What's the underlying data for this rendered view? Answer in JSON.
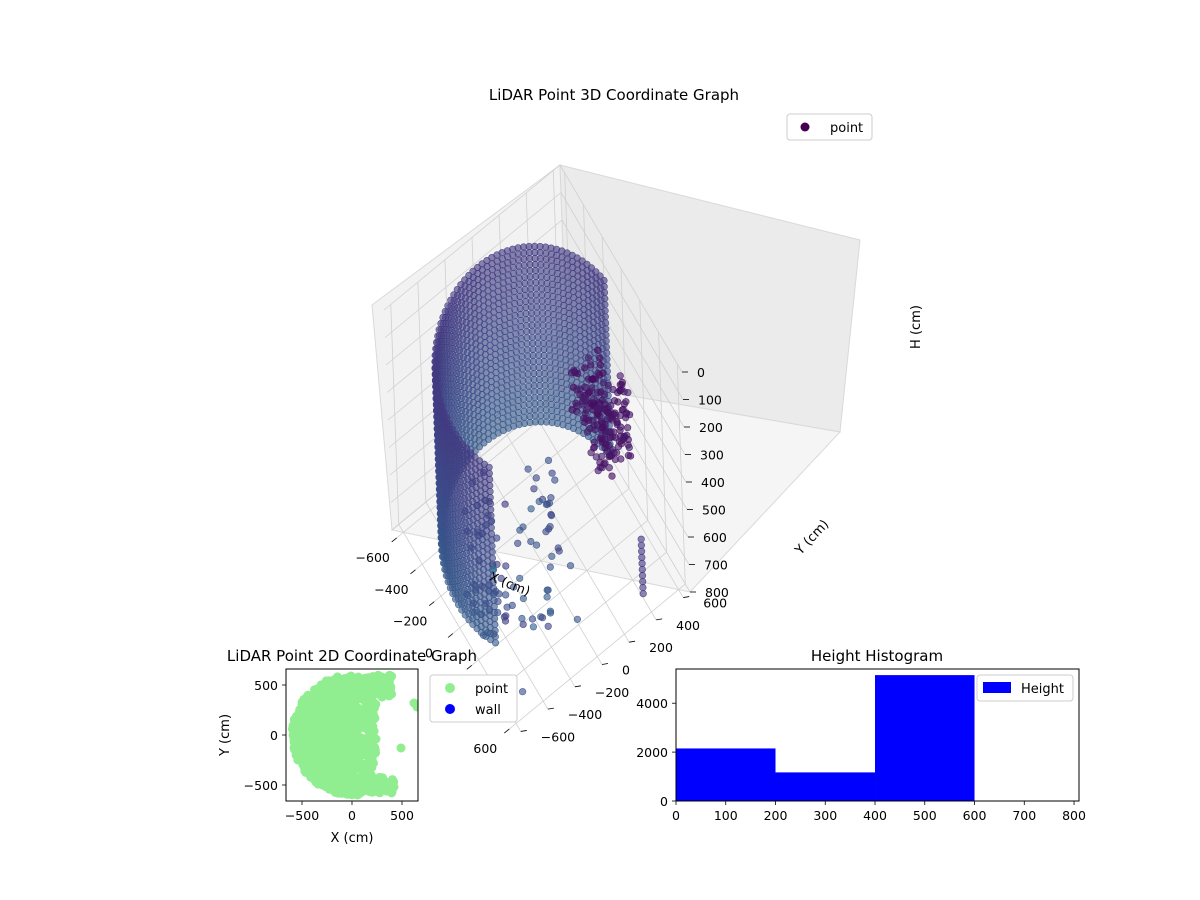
{
  "chart_data": [
    {
      "type": "scatter",
      "projection": "3d",
      "title": "LiDAR Point 3D Coordinate Graph",
      "xlabel": "X (cm)",
      "ylabel": "Y (cm)",
      "zlabel": "H (cm)",
      "xticks": [
        "−600",
        "−400",
        "−200",
        "0",
        "200",
        "400",
        "600"
      ],
      "yticks": [
        "−600",
        "−400",
        "−200",
        "0",
        "200",
        "400",
        "600"
      ],
      "zticks": [
        "0",
        "100",
        "200",
        "300",
        "400",
        "500",
        "600",
        "700",
        "800"
      ],
      "xlim": [
        -650,
        650
      ],
      "ylim": [
        -650,
        650
      ],
      "zlim": [
        0,
        800
      ],
      "zaxis_inverted": true,
      "colormap": "viridis",
      "grid": true,
      "legend": {
        "position": "top-right",
        "entries": [
          {
            "label": "point",
            "color": "#440154"
          }
        ]
      },
      "series": [
        {
          "name": "point",
          "description_ref": "ring of points radius ~600 cm, heights 0-800 cm, plus clusters on the +X side"
        }
      ]
    },
    {
      "type": "scatter",
      "title": "LiDAR Point 2D Coordinate Graph",
      "xlabel": "X (cm)",
      "ylabel": "Y (cm)",
      "xticks": [
        "−500",
        "0",
        "500"
      ],
      "yticks": [
        "−500",
        "0",
        "500"
      ],
      "xlim": [
        -660,
        660
      ],
      "ylim": [
        -660,
        660
      ],
      "legend": {
        "position": "outside-right",
        "entries": [
          {
            "label": "point",
            "color": "#90ee90"
          },
          {
            "label": "wall",
            "color": "#0000ff"
          }
        ]
      },
      "series": [
        {
          "name": "point",
          "color": "#90ee90"
        },
        {
          "name": "wall",
          "color": "#0000ff"
        }
      ]
    },
    {
      "type": "bar",
      "subtype": "histogram",
      "title": "Height Histogram",
      "xticks": [
        "0",
        "100",
        "200",
        "300",
        "400",
        "500",
        "600",
        "700",
        "800"
      ],
      "yticks": [
        "0",
        "2000",
        "4000"
      ],
      "xlim": [
        0,
        810
      ],
      "ylim": [
        0,
        5400
      ],
      "bins": [
        {
          "from": 0,
          "to": 200,
          "count": 2150
        },
        {
          "from": 200,
          "to": 400,
          "count": 1170
        },
        {
          "from": 400,
          "to": 600,
          "count": 5150
        }
      ],
      "color": "#0000ff",
      "legend": {
        "position": "top-right",
        "entries": [
          {
            "label": "Height",
            "color": "#0000ff"
          }
        ]
      }
    }
  ]
}
